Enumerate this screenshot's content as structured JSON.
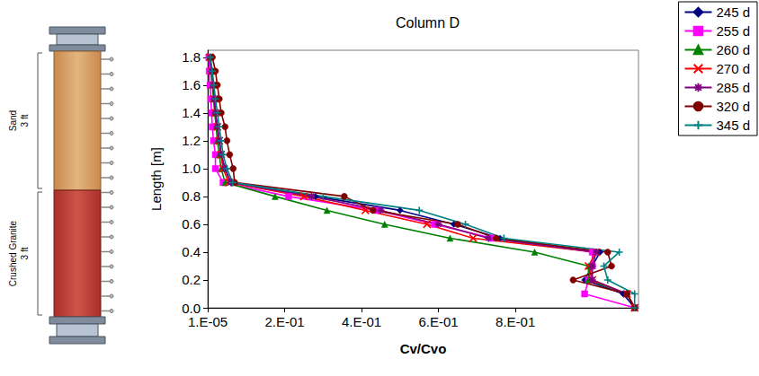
{
  "chart_data": {
    "type": "line",
    "title": "Column D",
    "x_label": "Cv/Cvo",
    "y_label": "Length [m]",
    "annotations": [
      [
        "Sand",
        "3 ft"
      ],
      [
        "Crushed Granite",
        "3 ft"
      ]
    ],
    "y": [
      0,
      0.1,
      0.2,
      0.3,
      0.4,
      0.5,
      0.6,
      0.7,
      0.8,
      0.9,
      1.0,
      1.1,
      1.2,
      1.3,
      1.4,
      1.5,
      1.6,
      1.7,
      1.8
    ],
    "series": [
      {
        "name": "245 d",
        "color": "#000080",
        "marker": "diamond",
        "values": [
          1.11,
          1.08,
          0.98,
          1.0,
          1.02,
          0.76,
          0.64,
          0.5,
          0.28,
          0.06,
          0.045,
          0.035,
          0.03,
          0.025,
          0.02,
          0.018,
          0.015,
          0.01,
          0.006
        ]
      },
      {
        "name": "255 d",
        "color": "#ff00ff",
        "marker": "square",
        "values": [
          1.11,
          0.98,
          0.99,
          1.0,
          1.0,
          0.74,
          0.59,
          0.44,
          0.21,
          0.04,
          0.02,
          0.02,
          0.015,
          0.012,
          0.01,
          0.008,
          0.006,
          0.004,
          0.003
        ]
      },
      {
        "name": "260 d",
        "color": "#008000",
        "marker": "triangle",
        "values": [
          1.11,
          1.09,
          0.99,
          0.99,
          0.85,
          0.63,
          0.46,
          0.31,
          0.175,
          0.045,
          0.035,
          0.03,
          0.025,
          0.022,
          0.018,
          0.015,
          0.012,
          0.009,
          0.005
        ]
      },
      {
        "name": "270 d",
        "color": "#ff0000",
        "marker": "x",
        "values": [
          1.11,
          1.09,
          1.0,
          0.99,
          1.01,
          0.69,
          0.57,
          0.41,
          0.25,
          0.055,
          0.04,
          0.035,
          0.03,
          0.025,
          0.02,
          0.017,
          0.014,
          0.01,
          0.006
        ]
      },
      {
        "name": "285 d",
        "color": "#800080",
        "marker": "star",
        "values": [
          1.11,
          1.09,
          1.0,
          1.0,
          1.01,
          0.73,
          0.6,
          0.45,
          0.27,
          0.06,
          0.045,
          0.035,
          0.03,
          0.025,
          0.02,
          0.017,
          0.014,
          0.01,
          0.006
        ]
      },
      {
        "name": "320 d",
        "color": "#800000",
        "marker": "circle",
        "values": [
          1.11,
          1.09,
          0.95,
          1.05,
          1.04,
          0.75,
          0.65,
          0.43,
          0.355,
          0.07,
          0.066,
          0.057,
          0.05,
          0.045,
          0.035,
          0.03,
          0.025,
          0.02,
          0.012
        ]
      },
      {
        "name": "345 d",
        "color": "#008080",
        "marker": "plus",
        "values": [
          1.11,
          1.11,
          1.04,
          1.03,
          1.07,
          0.77,
          0.67,
          0.55,
          0.3,
          0.065,
          0.05,
          0.04,
          0.035,
          0.03,
          0.025,
          0.02,
          0.016,
          0.012,
          0.007
        ]
      }
    ],
    "xlim": [
      1e-05,
      1.12
    ],
    "xticks": [
      {
        "value": 1e-05,
        "label": "1.E-05"
      },
      {
        "value": 0.2,
        "label": "2.E-01"
      },
      {
        "value": 0.4,
        "label": "4.E-01"
      },
      {
        "value": 0.6,
        "label": "6.E-01"
      },
      {
        "value": 0.8,
        "label": "8.E-01"
      }
    ],
    "ylim": [
      0,
      1.85
    ],
    "yticks": [
      {
        "value": 0,
        "label": "0.0"
      },
      {
        "value": 0.2,
        "label": "0.2"
      },
      {
        "value": 0.4,
        "label": "0.4"
      },
      {
        "value": 0.6,
        "label": "0.6"
      },
      {
        "value": 0.8,
        "label": "0.8"
      },
      {
        "value": 1.0,
        "label": "1.0"
      },
      {
        "value": 1.2,
        "label": "1.2"
      },
      {
        "value": 1.4,
        "label": "1.4"
      },
      {
        "value": 1.6,
        "label": "1.6"
      },
      {
        "value": 1.8,
        "label": "1.8"
      }
    ],
    "grid": false,
    "legend": "upper right"
  }
}
